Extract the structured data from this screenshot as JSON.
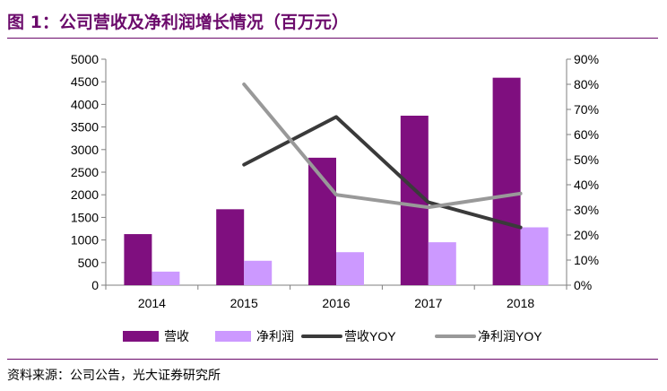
{
  "figure": {
    "title": "图 1：公司营收及净利润增长情况（百万元）",
    "source": "资料来源：公司公告，光大证券研究所"
  },
  "chart_data": {
    "type": "bar",
    "categories": [
      "2014",
      "2015",
      "2016",
      "2017",
      "2018"
    ],
    "series": [
      {
        "name": "营收",
        "type": "bar",
        "axis": "left",
        "color": "#7f0f7f",
        "values": [
          1130,
          1680,
          2820,
          3750,
          4590
        ]
      },
      {
        "name": "净利润",
        "type": "bar",
        "axis": "left",
        "color": "#cc99ff",
        "values": [
          300,
          540,
          730,
          950,
          1280
        ]
      },
      {
        "name": "营收YOY",
        "type": "line",
        "axis": "right",
        "color": "#3a3a3a",
        "values": [
          null,
          0.48,
          0.67,
          0.33,
          0.23
        ]
      },
      {
        "name": "净利润YOY",
        "type": "line",
        "axis": "right",
        "color": "#999999",
        "values": [
          null,
          0.8,
          0.36,
          0.31,
          0.365
        ]
      }
    ],
    "y_left": {
      "min": 0,
      "max": 5000,
      "step": 500,
      "ticks": [
        "0",
        "500",
        "1000",
        "1500",
        "2000",
        "2500",
        "3000",
        "3500",
        "4000",
        "4500",
        "5000"
      ]
    },
    "y_right": {
      "min": 0,
      "max": 0.9,
      "step": 0.1,
      "ticks": [
        "0%",
        "10%",
        "20%",
        "30%",
        "40%",
        "50%",
        "60%",
        "70%",
        "80%",
        "90%"
      ]
    },
    "grid": false,
    "legend_position": "bottom"
  }
}
